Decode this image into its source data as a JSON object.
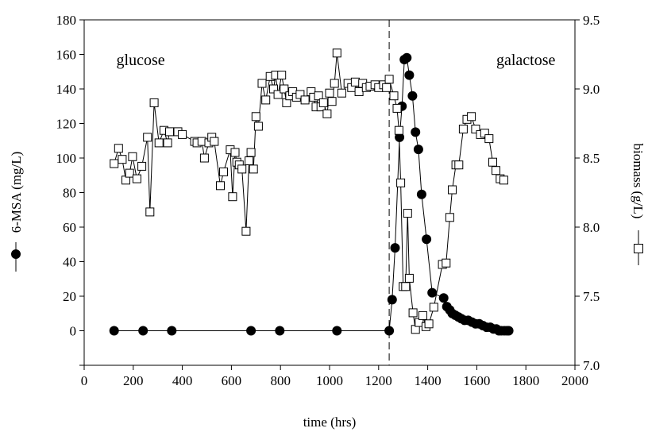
{
  "chart_data": {
    "type": "scatter",
    "xlabel": "time (hrs)",
    "ylabel": "6-MSA (mg/L)",
    "y2label": "biomass (g/L)",
    "xlim": [
      0,
      2000
    ],
    "ylim": [
      -20,
      180
    ],
    "y2lim": [
      7.0,
      9.5
    ],
    "xticks": [
      "0",
      "200",
      "400",
      "600",
      "800",
      "1000",
      "1200",
      "1400",
      "1600",
      "1800",
      "2000"
    ],
    "yticks": [
      "0",
      "20",
      "40",
      "60",
      "80",
      "100",
      "120",
      "140",
      "160",
      "180"
    ],
    "y2ticks": [
      "7.0",
      "7.5",
      "8.0",
      "8.5",
      "9.0",
      "9.5"
    ],
    "grid": false,
    "annotations": [
      {
        "text": "glucose",
        "x": 230,
        "y": 157
      },
      {
        "text": "galactose",
        "x": 1800,
        "y": 157
      }
    ],
    "switch_line_x": 1243,
    "series": [
      {
        "axis": "left",
        "marker": "filled-circle",
        "color": "#000000",
        "x": [
          122,
          240,
          357,
          680,
          797,
          1030,
          1243,
          1255,
          1267,
          1285,
          1295,
          1305,
          1315,
          1325,
          1338,
          1350,
          1362,
          1375,
          1395,
          1418,
          1465,
          1478,
          1490,
          1500,
          1512,
          1525,
          1537,
          1550,
          1565,
          1580,
          1595,
          1610,
          1625,
          1640,
          1655,
          1668,
          1680,
          1690,
          1700,
          1712,
          1722,
          1730
        ],
        "values": [
          0,
          0,
          0,
          0,
          0,
          0,
          0,
          18,
          48,
          112,
          130,
          157,
          158,
          148,
          136,
          115,
          105,
          79,
          53,
          22,
          19,
          14,
          12,
          10,
          9,
          8,
          7,
          6,
          6,
          5,
          4,
          4,
          3,
          2,
          2,
          1,
          1,
          0,
          0,
          0,
          0,
          0
        ]
      },
      {
        "axis": "right",
        "marker": "open-square",
        "color": "#000000",
        "x": [
          122,
          140,
          155,
          170,
          185,
          197,
          215,
          235,
          258,
          268,
          285,
          305,
          325,
          340,
          348,
          382,
          400,
          450,
          460,
          480,
          490,
          508,
          520,
          530,
          555,
          568,
          595,
          605,
          615,
          622,
          632,
          643,
          660,
          672,
          680,
          690,
          700,
          710,
          725,
          740,
          758,
          772,
          780,
          790,
          805,
          815,
          825,
          838,
          850,
          865,
          880,
          900,
          925,
          935,
          945,
          955,
          965,
          975,
          990,
          1000,
          1010,
          1020,
          1030,
          1050,
          1075,
          1090,
          1105,
          1120,
          1135,
          1150,
          1165,
          1185,
          1200,
          1220,
          1232,
          1243,
          1262,
          1275,
          1283,
          1290,
          1300,
          1310,
          1318,
          1325,
          1340,
          1350,
          1365,
          1380,
          1393,
          1405,
          1425,
          1460,
          1475,
          1490,
          1500,
          1515,
          1527,
          1545,
          1560,
          1578,
          1595,
          1615,
          1632,
          1650,
          1665,
          1678,
          1695,
          1710
        ],
        "values": [
          8.46,
          8.57,
          8.49,
          8.34,
          8.39,
          8.51,
          8.35,
          8.44,
          8.65,
          8.11,
          8.9,
          8.61,
          8.7,
          8.61,
          8.69,
          8.69,
          8.67,
          8.62,
          8.61,
          8.62,
          8.5,
          8.61,
          8.65,
          8.62,
          8.3,
          8.4,
          8.56,
          8.22,
          8.54,
          8.47,
          8.45,
          8.42,
          7.97,
          8.48,
          8.54,
          8.42,
          8.8,
          8.73,
          9.04,
          8.92,
          9.09,
          9.0,
          9.1,
          8.96,
          9.1,
          9.0,
          8.9,
          8.95,
          8.98,
          8.94,
          8.96,
          8.92,
          8.98,
          8.94,
          8.87,
          8.95,
          8.87,
          8.9,
          8.82,
          8.97,
          8.91,
          9.04,
          9.26,
          8.97,
          9.04,
          9.01,
          9.05,
          8.98,
          9.04,
          9.01,
          9.02,
          9.03,
          9.01,
          9.03,
          9.01,
          9.07,
          8.95,
          8.86,
          8.7,
          8.32,
          7.57,
          7.57,
          8.1,
          7.63,
          7.38,
          7.26,
          7.31,
          7.36,
          7.28,
          7.3,
          7.42,
          7.73,
          7.74,
          8.07,
          8.27,
          8.45,
          8.45,
          8.71,
          8.78,
          8.8,
          8.71,
          8.67,
          8.68,
          8.64,
          8.47,
          8.41,
          8.35,
          8.34
        ]
      }
    ]
  }
}
